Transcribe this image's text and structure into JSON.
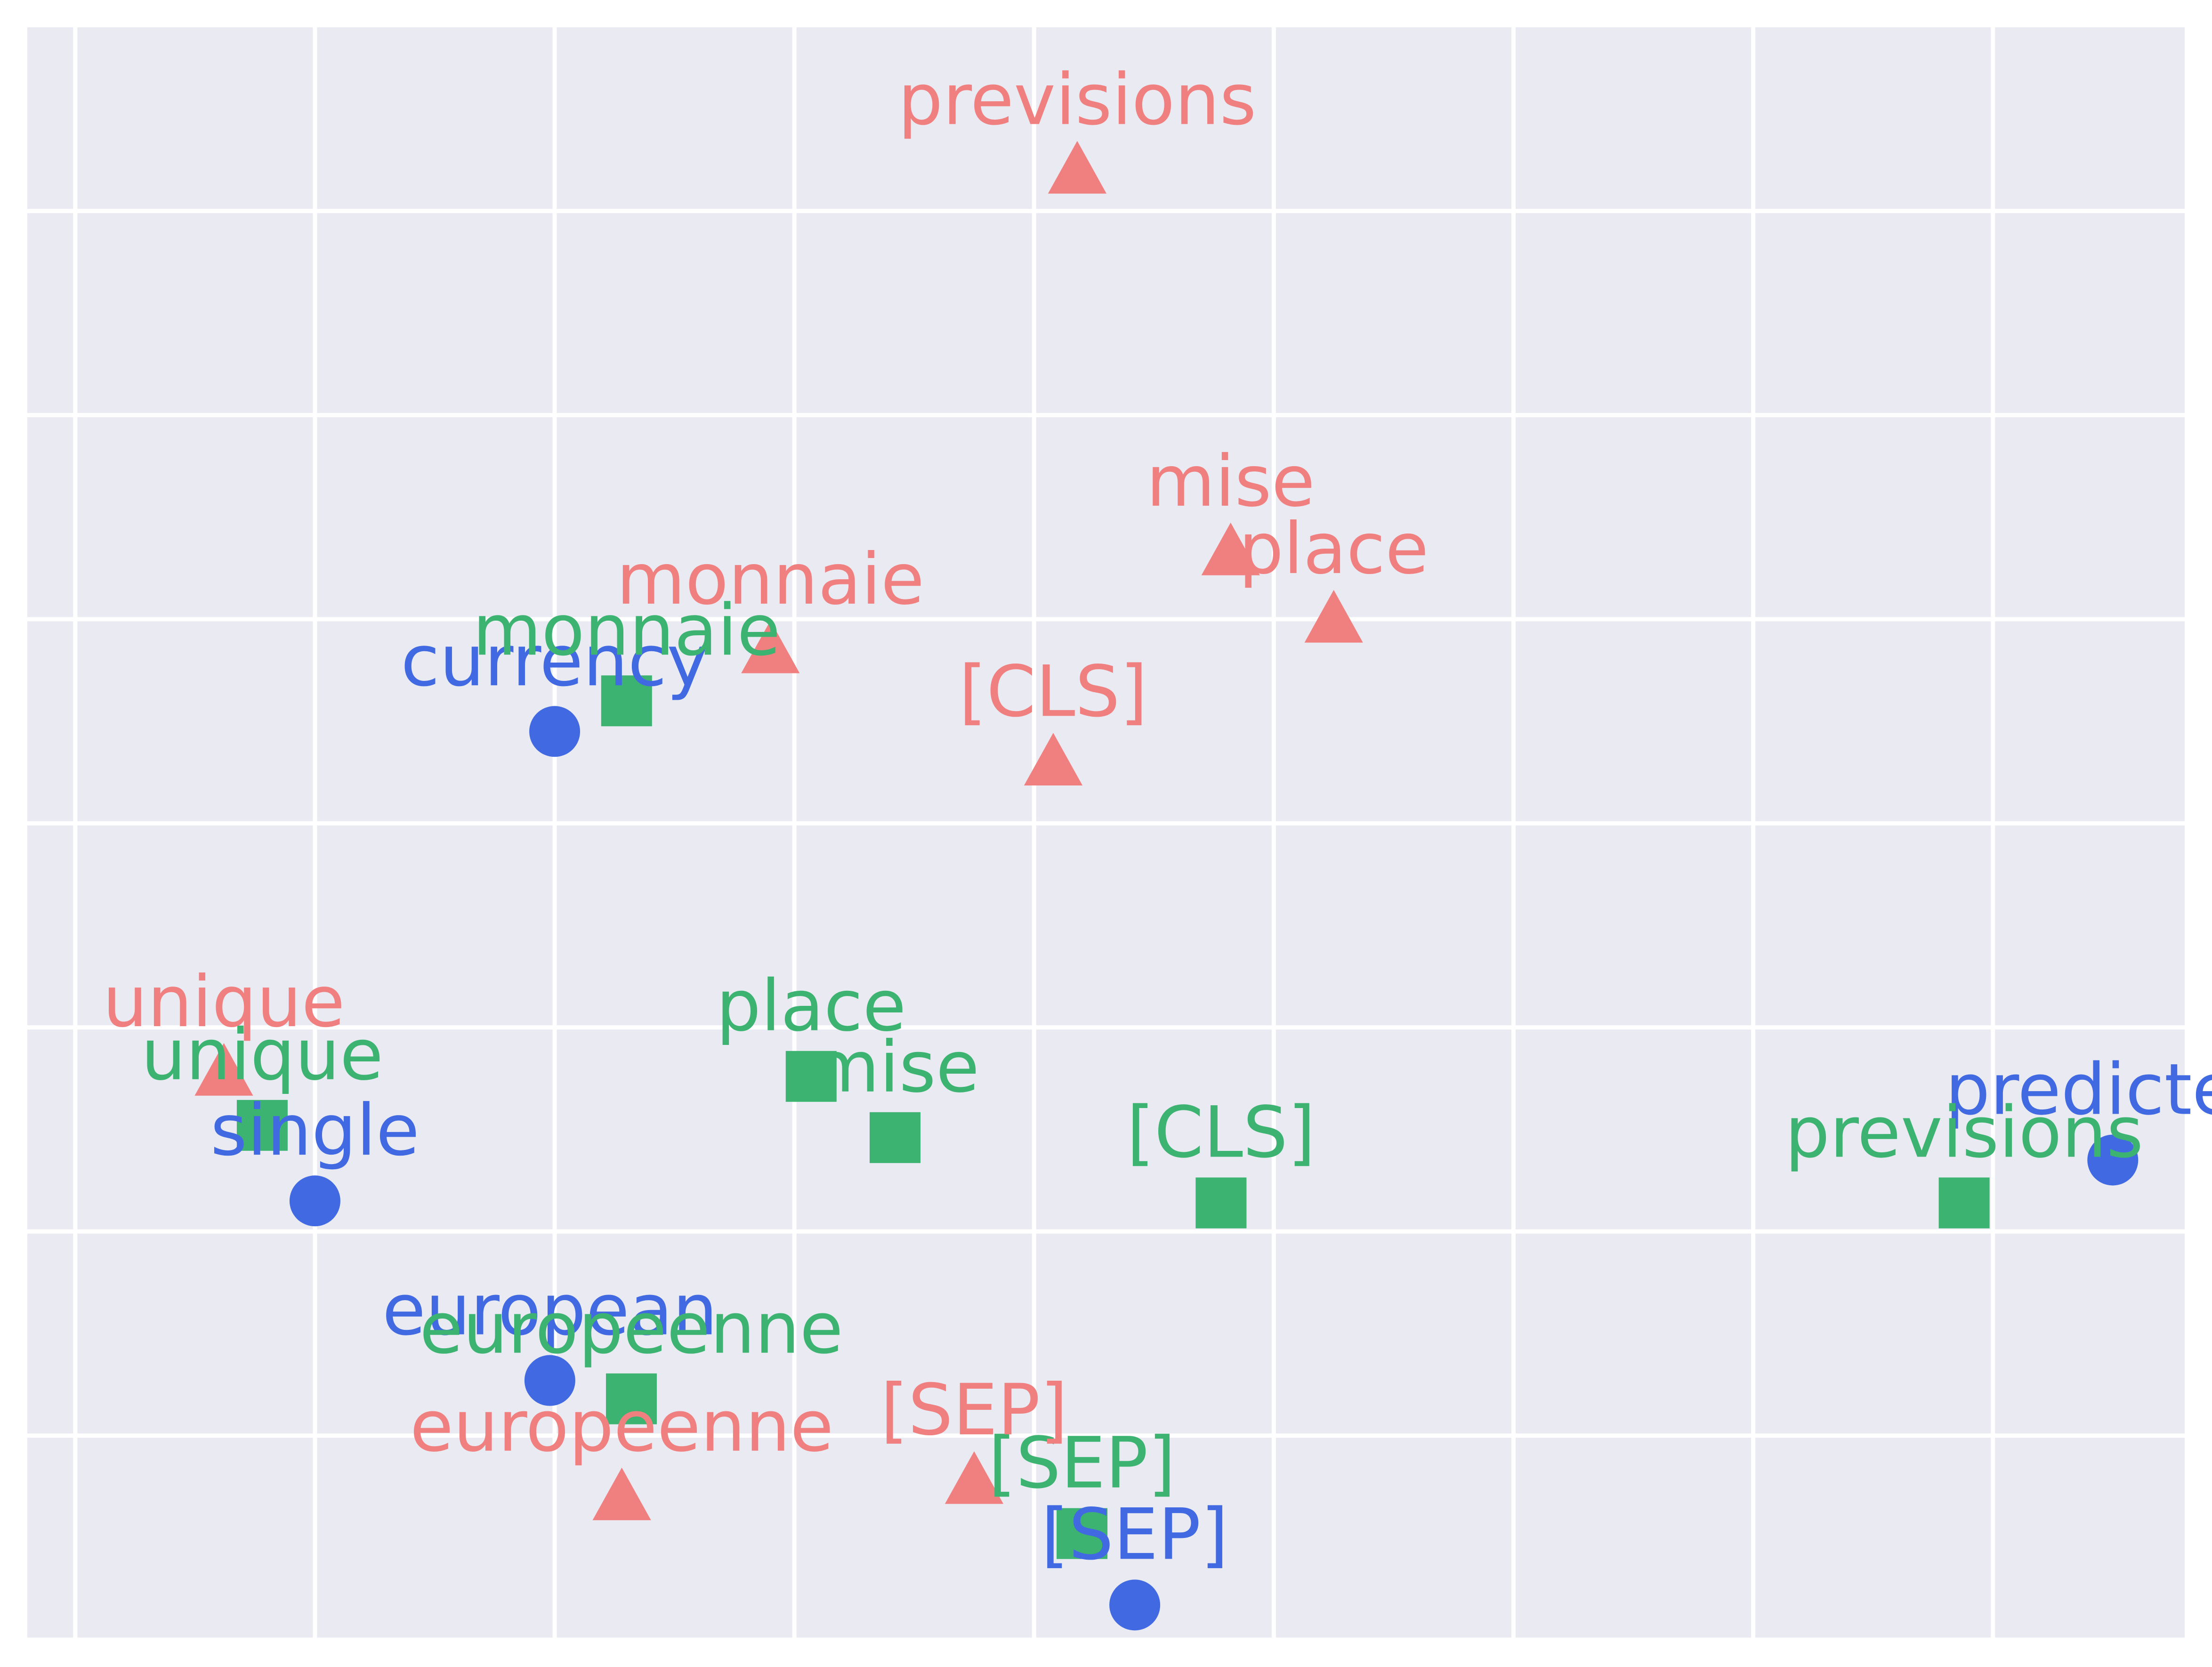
{
  "chart_data": {
    "type": "scatter",
    "title": "",
    "xlabel": "",
    "ylabel": "",
    "grid": true,
    "xlim": [
      -1.2,
      7.8
    ],
    "ylim": [
      -2.0,
      5.9
    ],
    "series": [
      {
        "marker": "circle",
        "color": "#4169E1",
        "points": [
          {
            "label": "currency",
            "x": 1.0,
            "y": 2.45
          },
          {
            "label": "single",
            "x": 0.0,
            "y": 0.15
          },
          {
            "label": "european",
            "x": 0.98,
            "y": -0.73
          },
          {
            "label": "[SEP]",
            "x": 3.42,
            "y": -1.83
          },
          {
            "label": "predicted",
            "x": 7.5,
            "y": 0.35
          }
        ]
      },
      {
        "marker": "square",
        "color": "#3CB371",
        "points": [
          {
            "label": "monnaie",
            "x": 1.3,
            "y": 2.6
          },
          {
            "label": "unique",
            "x": -0.22,
            "y": 0.52
          },
          {
            "label": "europeenne",
            "x": 1.32,
            "y": -0.82
          },
          {
            "label": "place",
            "x": 2.07,
            "y": 0.76
          },
          {
            "label": "mise",
            "x": 2.42,
            "y": 0.46
          },
          {
            "label": "[CLS]",
            "x": 3.78,
            "y": 0.14
          },
          {
            "label": "previsions",
            "x": 6.88,
            "y": 0.14
          },
          {
            "label": "[SEP]",
            "x": 3.2,
            "y": -1.48
          }
        ]
      },
      {
        "marker": "triangle",
        "color": "#F08080",
        "points": [
          {
            "label": "previsions",
            "x": 3.18,
            "y": 5.2
          },
          {
            "label": "mise",
            "x": 3.82,
            "y": 3.33
          },
          {
            "label": "place",
            "x": 4.25,
            "y": 3.0
          },
          {
            "label": "monnaie",
            "x": 1.9,
            "y": 2.85
          },
          {
            "label": "[CLS]",
            "x": 3.08,
            "y": 2.3
          },
          {
            "label": "unique",
            "x": -0.38,
            "y": 0.78
          },
          {
            "label": "europeenne",
            "x": 1.28,
            "y": -1.3
          },
          {
            "label": "[SEP]",
            "x": 2.75,
            "y": -1.22
          }
        ]
      }
    ]
  }
}
